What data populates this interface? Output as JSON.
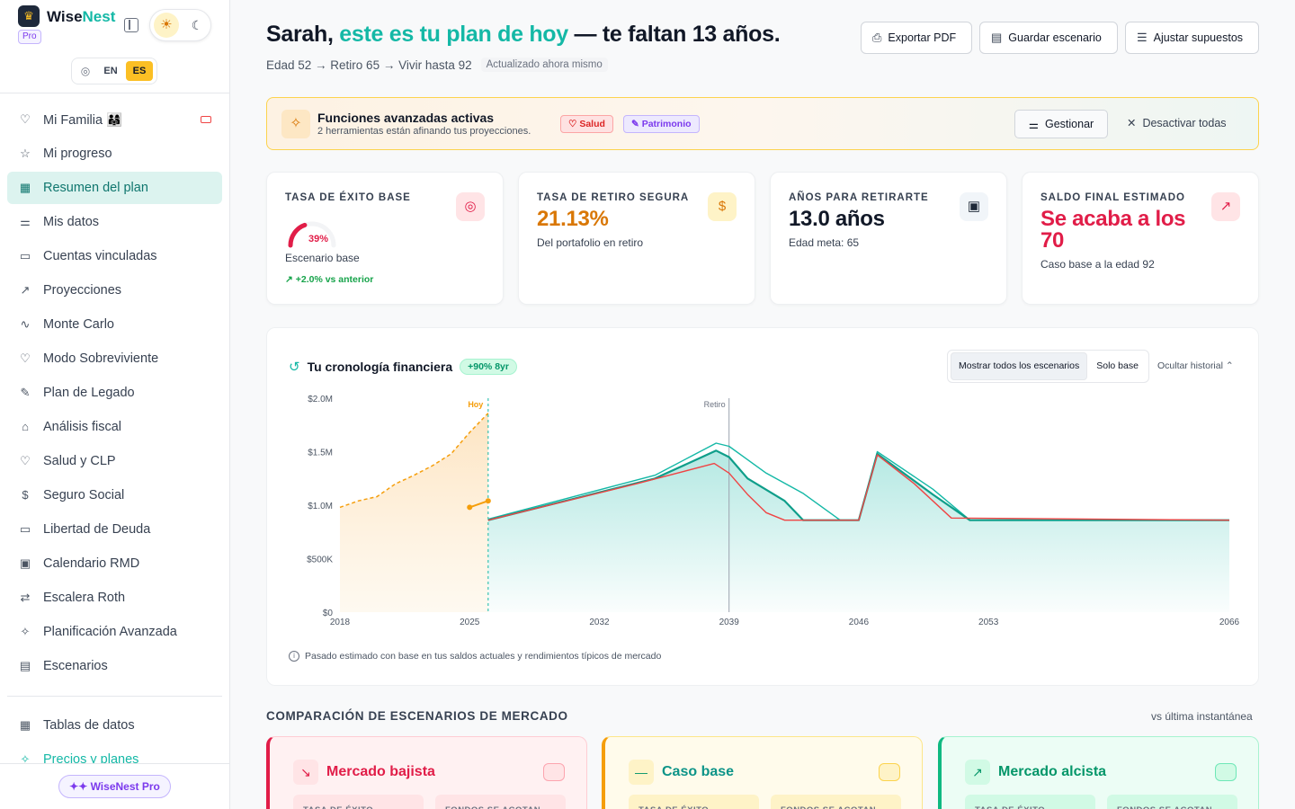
{
  "app": {
    "name_a": "Wise",
    "name_b": "Nest",
    "pro_badge": "Pro",
    "logo_icon": "crown-icon"
  },
  "language": {
    "options": [
      "EN",
      "ES"
    ],
    "selected": "ES"
  },
  "sidebar": {
    "items": [
      {
        "label": "Mi Familia 👨‍👩‍👧",
        "icon": "heart-icon"
      },
      {
        "label": "Mi progreso",
        "icon": "star-icon"
      },
      {
        "label": "Resumen del plan",
        "icon": "grid-icon",
        "active": true
      },
      {
        "label": "Mis datos",
        "icon": "sliders-icon"
      },
      {
        "label": "Cuentas vinculadas",
        "icon": "card-icon"
      },
      {
        "label": "Proyecciones",
        "icon": "trend-icon"
      },
      {
        "label": "Monte Carlo",
        "icon": "pulse-icon"
      },
      {
        "label": "Modo Sobreviviente",
        "icon": "heart-icon"
      },
      {
        "label": "Plan de Legado",
        "icon": "feather-icon"
      },
      {
        "label": "Análisis fiscal",
        "icon": "bank-icon"
      },
      {
        "label": "Salud y CLP",
        "icon": "heart-pulse-icon"
      },
      {
        "label": "Seguro Social",
        "icon": "dollar-circle-icon"
      },
      {
        "label": "Libertad de Deuda",
        "icon": "card-icon"
      },
      {
        "label": "Calendario RMD",
        "icon": "calendar-icon"
      },
      {
        "label": "Escalera Roth",
        "icon": "arrows-icon"
      },
      {
        "label": "Planificación Avanzada",
        "icon": "sparkles-icon"
      },
      {
        "label": "Escenarios",
        "icon": "save-icon"
      }
    ],
    "secondary": [
      {
        "label": "Tablas de datos",
        "icon": "table-icon"
      },
      {
        "label": "Precios y planes",
        "icon": "sparkles-icon"
      }
    ],
    "pro_button": "✦✦ WiseNest Pro"
  },
  "header": {
    "name": "Sarah,",
    "highlight": "este es tu plan de hoy",
    "rest": "— te faltan 13 años.",
    "subtitle": "Edad 52 → Retiro 65 → Vivir hasta 92",
    "updated": "Actualizado ahora mismo",
    "buttons": [
      "Exportar PDF",
      "Guardar escenario",
      "Ajustar supuestos"
    ]
  },
  "banner": {
    "title": "Funciones avanzadas activas",
    "subtitle": "2 herramientas están afinando tus proyecciones.",
    "tags": [
      "Salud",
      "Patrimonio"
    ],
    "manage": "Gestionar",
    "deactivate": "Desactivar todas"
  },
  "kpis": [
    {
      "label": "TASA DE ÉXITO BASE",
      "value": "39%",
      "value_pct": 39,
      "desc": "Escenario base",
      "delta": "+2.0% vs anterior",
      "icon": "target-icon"
    },
    {
      "label": "TASA DE RETIRO SEGURA",
      "value": "21.13%",
      "desc": "Del portafolio en retiro",
      "icon": "dollar-icon"
    },
    {
      "label": "AÑOS PARA RETIRARTE",
      "value": "13.0 años",
      "desc": "Edad meta: 65",
      "icon": "calendar-icon"
    },
    {
      "label": "SALDO FINAL ESTIMADO",
      "value": "Se acaba a los 70",
      "desc": "Caso base a la edad 92",
      "icon": "trend-up-icon"
    }
  ],
  "timeline": {
    "title": "Tu cronología financiera",
    "badge": "+90% 8yr",
    "toggle": [
      "Mostrar todos los escenarios",
      "Solo base"
    ],
    "toggle_selected": "Mostrar todos los escenarios",
    "hide_history": "Ocultar historial ⌃",
    "footnote": "Pasado estimado con base en tus saldos actuales y rendimientos típicos de mercado"
  },
  "chart_data": {
    "type": "area",
    "y_ticks": [
      "$0",
      "$500K",
      "$1.0M",
      "$1.5M",
      "$2.0M"
    ],
    "x_ticks": [
      "2018",
      "2025",
      "2032",
      "2039",
      "2046",
      "2053",
      "2066"
    ],
    "xlim": [
      2018,
      2066
    ],
    "ylim": [
      0,
      2000000
    ],
    "markers": [
      {
        "label": "Hoy",
        "x": 2026
      },
      {
        "label": "Retiro",
        "x": 2039
      }
    ],
    "history": {
      "name": "historial",
      "color": "#f59e0b",
      "x": [
        2018,
        2019,
        2020,
        2021,
        2022,
        2023,
        2024,
        2025,
        2026
      ],
      "y": [
        980000,
        1040000,
        1080000,
        1200000,
        1280000,
        1370000,
        1480000,
        1680000,
        1860000
      ]
    },
    "current": {
      "color": "#f59e0b",
      "x": [
        2025,
        2026
      ],
      "y": [
        980000,
        1040000
      ]
    },
    "series": [
      {
        "role": "bullish",
        "color": "#14b8a6",
        "x": [
          2026,
          2035,
          2038.3,
          2039,
          2041,
          2043,
          2045,
          2046,
          2047,
          2050,
          2052,
          2066
        ],
        "y": [
          870000,
          1280000,
          1580000,
          1550000,
          1300000,
          1110000,
          860000,
          860000,
          1500000,
          1150000,
          860000,
          860000
        ]
      },
      {
        "role": "base",
        "color": "#0f9e8a",
        "x": [
          2026,
          2035,
          2038.3,
          2039,
          2040,
          2042,
          2043,
          2045,
          2046,
          2047,
          2050,
          2052,
          2066
        ],
        "y": [
          860000,
          1250000,
          1510000,
          1450000,
          1250000,
          1040000,
          860000,
          860000,
          860000,
          1480000,
          1100000,
          860000,
          860000
        ]
      },
      {
        "role": "bearish",
        "color": "#ef4444",
        "x": [
          2026,
          2034,
          2038.2,
          2039,
          2040,
          2041,
          2042,
          2043,
          2045,
          2046,
          2047,
          2049,
          2051,
          2066
        ],
        "y": [
          860000,
          1200000,
          1390000,
          1300000,
          1100000,
          930000,
          860000,
          860000,
          860000,
          860000,
          1470000,
          1200000,
          880000,
          860000
        ]
      }
    ]
  },
  "comparison": {
    "title": "COMPARACIÓN DE ESCENARIOS DE MERCADO",
    "right": "vs última instantánea",
    "cards": [
      {
        "name": "Mercado bajista",
        "icon": "trend-down-icon",
        "col1": "TASA DE ÉXITO",
        "col2": "FONDOS SE ACOTAN"
      },
      {
        "name": "Caso base",
        "icon": "minus-icon",
        "col1": "TASA DE ÉXITO",
        "col2": "FONDOS SE ACOTAN"
      },
      {
        "name": "Mercado alcista",
        "icon": "trend-up-icon",
        "col1": "TASA DE ÉXITO",
        "col2": "FONDOS SE ACOTAN"
      }
    ]
  }
}
